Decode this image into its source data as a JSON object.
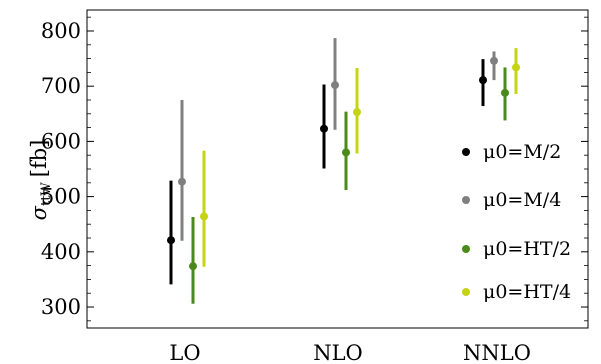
{
  "chart_data": {
    "type": "scatter",
    "categories": [
      "LO",
      "NLO",
      "NNLO"
    ],
    "ylabel_main": "σ",
    "ylabel_sub": "ttW",
    "ylabel_unit": "[fb]",
    "ylim": [
      262,
      838
    ],
    "yticks": [
      300,
      400,
      500,
      600,
      700,
      800
    ],
    "ytick_labels": [
      "300",
      "400",
      "500",
      "600",
      "700",
      "800"
    ],
    "grid": false,
    "legend_position": "right",
    "series": [
      {
        "name": "μ0=M/2",
        "color": "#000000",
        "values": [
          421,
          623,
          711
        ],
        "lower": [
          341,
          551,
          664
        ],
        "upper": [
          529,
          703,
          749
        ]
      },
      {
        "name": "μ0=M/4",
        "color": "#808080",
        "values": [
          527,
          702,
          746
        ],
        "lower": [
          420,
          621,
          711
        ],
        "upper": [
          675,
          787,
          763
        ]
      },
      {
        "name": "μ0=HT/2",
        "color": "#4a8a1a",
        "values": [
          374,
          580,
          688
        ],
        "lower": [
          306,
          512,
          638
        ],
        "upper": [
          463,
          654,
          734
        ]
      },
      {
        "name": "μ0=HT/4",
        "color": "#c4d414",
        "values": [
          464,
          653,
          734
        ],
        "lower": [
          373,
          578,
          686
        ],
        "upper": [
          583,
          733,
          769
        ]
      }
    ]
  }
}
